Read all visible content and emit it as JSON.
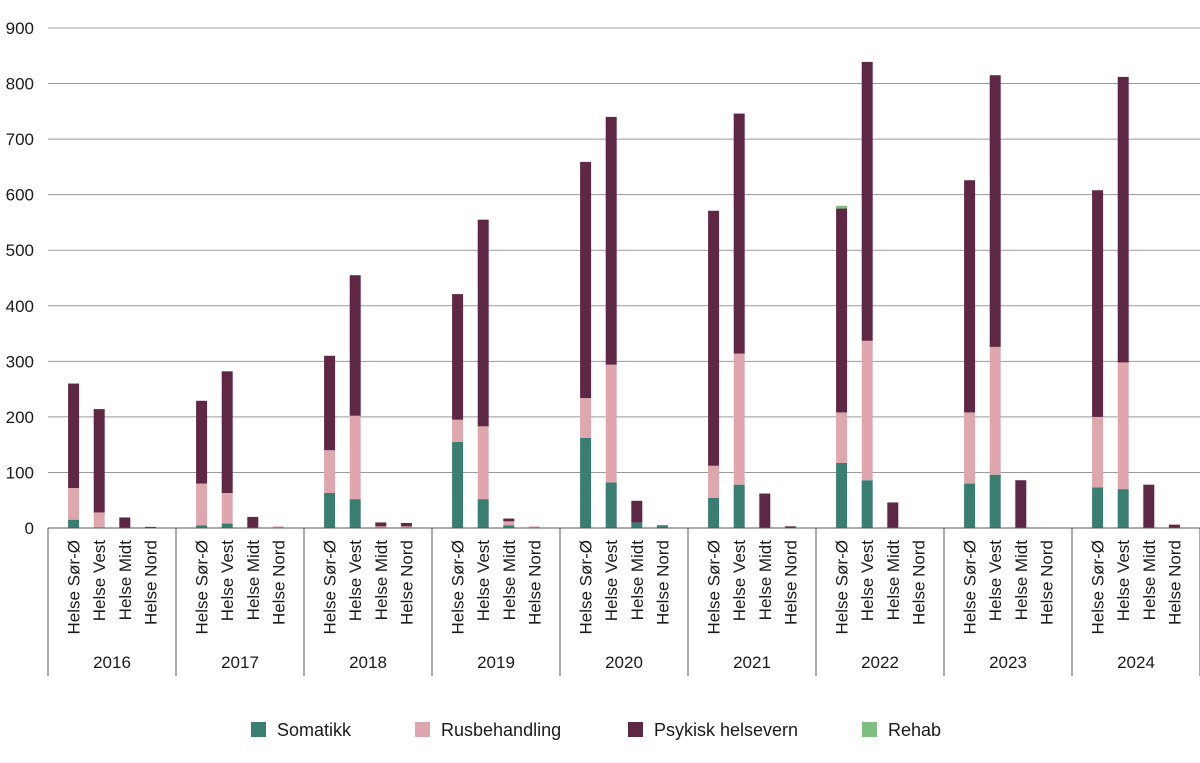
{
  "chart_data": {
    "type": "bar",
    "stacked": true,
    "ylim": [
      0,
      900
    ],
    "yticks": [
      0,
      100,
      200,
      300,
      400,
      500,
      600,
      700,
      800,
      900
    ],
    "grid": true,
    "legend_position": "bottom",
    "groups": [
      "2016",
      "2017",
      "2018",
      "2019",
      "2020",
      "2021",
      "2022",
      "2023",
      "2024"
    ],
    "categories": [
      "Helse Sør-Ø",
      "Helse Vest",
      "Helse Midt",
      "Helse Nord"
    ],
    "series": [
      {
        "name": "Somatikk",
        "color": "#3a7d71",
        "values": [
          [
            15,
            0,
            0,
            0
          ],
          [
            5,
            8,
            0,
            0
          ],
          [
            63,
            52,
            0,
            0
          ],
          [
            155,
            52,
            5,
            0
          ],
          [
            162,
            82,
            10,
            5
          ],
          [
            54,
            78,
            0,
            0
          ],
          [
            117,
            86,
            0,
            0
          ],
          [
            80,
            96,
            0,
            0
          ],
          [
            73,
            70,
            0,
            0
          ]
        ]
      },
      {
        "name": "Rusbehandling",
        "color": "#dda7ad",
        "values": [
          [
            57,
            28,
            0,
            0
          ],
          [
            75,
            55,
            0,
            3
          ],
          [
            77,
            150,
            3,
            3
          ],
          [
            40,
            131,
            7,
            3
          ],
          [
            72,
            212,
            0,
            0
          ],
          [
            58,
            236,
            0,
            0
          ],
          [
            91,
            251,
            0,
            0
          ],
          [
            128,
            230,
            0,
            0
          ],
          [
            127,
            228,
            0,
            0
          ]
        ]
      },
      {
        "name": "Psykisk helsevern",
        "color": "#5e2743",
        "values": [
          [
            188,
            186,
            19,
            2
          ],
          [
            149,
            219,
            20,
            0
          ],
          [
            170,
            253,
            7,
            6
          ],
          [
            226,
            372,
            5,
            0
          ],
          [
            425,
            446,
            39,
            0
          ],
          [
            459,
            432,
            62,
            3
          ],
          [
            367,
            502,
            46,
            0
          ],
          [
            418,
            489,
            86,
            0
          ],
          [
            408,
            514,
            78,
            6
          ]
        ]
      },
      {
        "name": "Rehab",
        "color": "#7fbf83",
        "values": [
          [
            0,
            0,
            0,
            0
          ],
          [
            0,
            0,
            0,
            0
          ],
          [
            0,
            0,
            0,
            0
          ],
          [
            0,
            0,
            0,
            0
          ],
          [
            0,
            0,
            0,
            0
          ],
          [
            0,
            0,
            0,
            0
          ],
          [
            5,
            0,
            0,
            0
          ],
          [
            0,
            0,
            0,
            0
          ],
          [
            0,
            0,
            0,
            0
          ]
        ]
      }
    ]
  }
}
